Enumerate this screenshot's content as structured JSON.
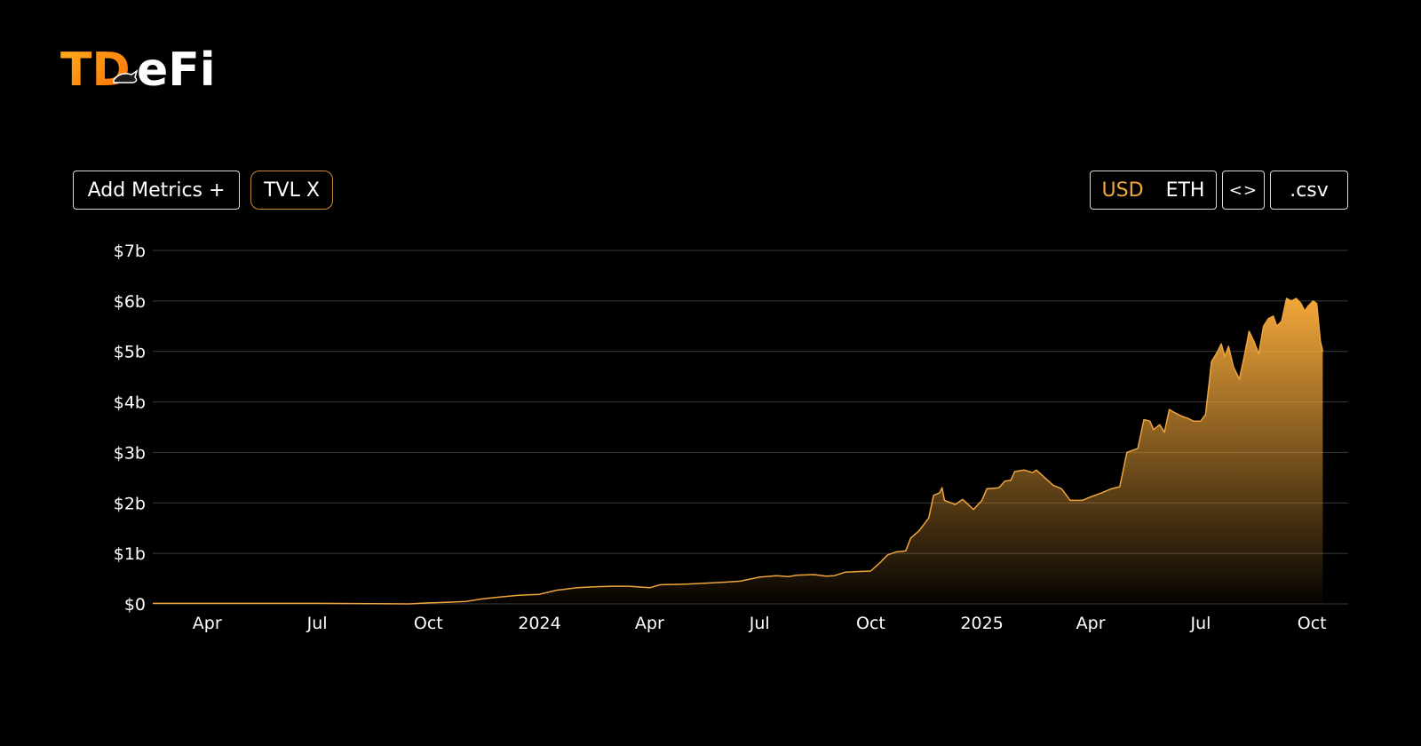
{
  "brand": {
    "logo_text": "TDeFi"
  },
  "toolbar": {
    "add_metrics_label": "Add Metrics +",
    "metric_chip_label": "TVL X",
    "currency_options": [
      "USD",
      "ETH"
    ],
    "currency_selected": "USD",
    "embed_label": "<>",
    "csv_label": ".csv"
  },
  "colors": {
    "background": "#000000",
    "accent": "#f3a73a",
    "line": "#f0a53c",
    "grid": "#3a3a3a",
    "chip_border": "#c98a3a"
  },
  "chart_data": {
    "type": "area",
    "title": "",
    "xlabel": "",
    "ylabel": "",
    "ylim": [
      0,
      7
    ],
    "y_unit": "billion USD",
    "y_ticks": [
      0,
      1,
      2,
      3,
      4,
      5,
      6,
      7
    ],
    "y_tick_labels": [
      "$0",
      "$1b",
      "$2b",
      "$3b",
      "$4b",
      "$5b",
      "$6b",
      "$7b"
    ],
    "xlim": [
      "2023-02-15",
      "2025-10-31"
    ],
    "x_ticks": [
      "2023-04-01",
      "2023-07-01",
      "2023-10-01",
      "2024-01-01",
      "2024-04-01",
      "2024-07-01",
      "2024-10-01",
      "2025-01-01",
      "2025-04-01",
      "2025-07-01",
      "2025-10-01"
    ],
    "x_tick_labels": [
      "Apr",
      "Jul",
      "Oct",
      "2024",
      "Apr",
      "Jul",
      "Oct",
      "2025",
      "Apr",
      "Jul",
      "Oct"
    ],
    "grid": true,
    "legend": "none",
    "series": [
      {
        "name": "TVL",
        "points": [
          [
            "2023-02-15",
            0.01
          ],
          [
            "2023-04-01",
            0.01
          ],
          [
            "2023-07-01",
            0.01
          ],
          [
            "2023-09-15",
            0.0
          ],
          [
            "2023-10-01",
            0.02
          ],
          [
            "2023-10-15",
            0.03
          ],
          [
            "2023-11-01",
            0.05
          ],
          [
            "2023-11-15",
            0.1
          ],
          [
            "2023-12-01",
            0.14
          ],
          [
            "2023-12-15",
            0.17
          ],
          [
            "2024-01-01",
            0.19
          ],
          [
            "2024-01-15",
            0.27
          ],
          [
            "2024-02-01",
            0.32
          ],
          [
            "2024-02-15",
            0.34
          ],
          [
            "2024-03-01",
            0.35
          ],
          [
            "2024-03-15",
            0.35
          ],
          [
            "2024-04-01",
            0.32
          ],
          [
            "2024-04-10",
            0.38
          ],
          [
            "2024-05-01",
            0.39
          ],
          [
            "2024-06-01",
            0.43
          ],
          [
            "2024-06-15",
            0.45
          ],
          [
            "2024-07-01",
            0.53
          ],
          [
            "2024-07-15",
            0.56
          ],
          [
            "2024-07-25",
            0.54
          ],
          [
            "2024-08-01",
            0.57
          ],
          [
            "2024-08-15",
            0.58
          ],
          [
            "2024-08-25",
            0.55
          ],
          [
            "2024-09-01",
            0.56
          ],
          [
            "2024-09-10",
            0.63
          ],
          [
            "2024-09-20",
            0.64
          ],
          [
            "2024-10-01",
            0.65
          ],
          [
            "2024-10-08",
            0.8
          ],
          [
            "2024-10-15",
            0.97
          ],
          [
            "2024-10-22",
            1.03
          ],
          [
            "2024-10-30",
            1.05
          ],
          [
            "2024-11-03",
            1.3
          ],
          [
            "2024-11-10",
            1.45
          ],
          [
            "2024-11-18",
            1.7
          ],
          [
            "2024-11-22",
            2.15
          ],
          [
            "2024-11-27",
            2.2
          ],
          [
            "2024-11-29",
            2.3
          ],
          [
            "2024-12-01",
            2.05
          ],
          [
            "2024-12-10",
            1.97
          ],
          [
            "2024-12-16",
            2.07
          ],
          [
            "2024-12-25",
            1.87
          ],
          [
            "2025-01-01",
            2.05
          ],
          [
            "2025-01-05",
            2.28
          ],
          [
            "2025-01-15",
            2.3
          ],
          [
            "2025-01-20",
            2.43
          ],
          [
            "2025-01-25",
            2.45
          ],
          [
            "2025-01-28",
            2.62
          ],
          [
            "2025-02-05",
            2.65
          ],
          [
            "2025-02-12",
            2.6
          ],
          [
            "2025-02-15",
            2.65
          ],
          [
            "2025-02-22",
            2.5
          ],
          [
            "2025-03-01",
            2.35
          ],
          [
            "2025-03-08",
            2.28
          ],
          [
            "2025-03-15",
            2.05
          ],
          [
            "2025-03-25",
            2.05
          ],
          [
            "2025-04-01",
            2.12
          ],
          [
            "2025-04-10",
            2.2
          ],
          [
            "2025-04-18",
            2.28
          ],
          [
            "2025-04-25",
            2.32
          ],
          [
            "2025-05-01",
            3.0
          ],
          [
            "2025-05-10",
            3.08
          ],
          [
            "2025-05-15",
            3.65
          ],
          [
            "2025-05-20",
            3.62
          ],
          [
            "2025-05-23",
            3.45
          ],
          [
            "2025-05-28",
            3.55
          ],
          [
            "2025-06-01",
            3.4
          ],
          [
            "2025-06-05",
            3.85
          ],
          [
            "2025-06-10",
            3.78
          ],
          [
            "2025-06-15",
            3.72
          ],
          [
            "2025-06-20",
            3.68
          ],
          [
            "2025-06-25",
            3.62
          ],
          [
            "2025-07-01",
            3.62
          ],
          [
            "2025-07-05",
            3.75
          ],
          [
            "2025-07-10",
            4.8
          ],
          [
            "2025-07-15",
            5.0
          ],
          [
            "2025-07-18",
            5.15
          ],
          [
            "2025-07-21",
            4.9
          ],
          [
            "2025-07-24",
            5.1
          ],
          [
            "2025-07-28",
            4.7
          ],
          [
            "2025-08-02",
            4.45
          ],
          [
            "2025-08-06",
            4.9
          ],
          [
            "2025-08-10",
            5.4
          ],
          [
            "2025-08-14",
            5.2
          ],
          [
            "2025-08-18",
            4.95
          ],
          [
            "2025-08-22",
            5.5
          ],
          [
            "2025-08-26",
            5.65
          ],
          [
            "2025-08-30",
            5.7
          ],
          [
            "2025-09-02",
            5.5
          ],
          [
            "2025-09-06",
            5.6
          ],
          [
            "2025-09-10",
            6.05
          ],
          [
            "2025-09-14",
            6.0
          ],
          [
            "2025-09-18",
            6.05
          ],
          [
            "2025-09-22",
            5.95
          ],
          [
            "2025-09-25",
            5.8
          ],
          [
            "2025-09-28",
            5.9
          ],
          [
            "2025-10-02",
            6.0
          ],
          [
            "2025-10-05",
            5.95
          ],
          [
            "2025-10-08",
            5.2
          ],
          [
            "2025-10-10",
            5.0
          ]
        ]
      }
    ]
  }
}
